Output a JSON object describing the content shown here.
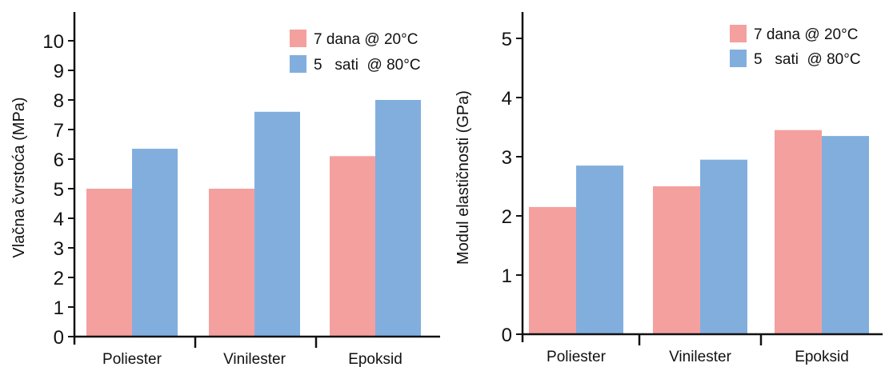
{
  "chart_data": [
    {
      "type": "bar",
      "categories": [
        "Poliester",
        "Vinilester",
        "Epoksid"
      ],
      "ylabel": "Vlačna čvrstoća (MPa)",
      "xlabel": "",
      "ylim": [
        0,
        10
      ],
      "yticks": [
        "0",
        "1",
        "2",
        "3",
        "4",
        "5",
        "6",
        "7",
        "8",
        "9",
        "10"
      ],
      "grid": false,
      "legend_position": "top-right",
      "series": [
        {
          "name": "7 dana @ 20°C",
          "color": "#f4a09e",
          "values": [
            5.0,
            5.0,
            6.1
          ]
        },
        {
          "name": "5   sati  @ 80°C",
          "color": "#82aede",
          "values": [
            6.35,
            7.6,
            8.0
          ]
        }
      ]
    },
    {
      "type": "bar",
      "categories": [
        "Poliester",
        "Vinilester",
        "Epoksid"
      ],
      "ylabel": "Modul elastičnosti (GPa)",
      "xlabel": "",
      "ylim": [
        0,
        5
      ],
      "yticks": [
        "0",
        "1",
        "2",
        "3",
        "4",
        "5"
      ],
      "grid": false,
      "legend_position": "top-right",
      "series": [
        {
          "name": "7 dana @ 20°C",
          "color": "#f4a09e",
          "values": [
            2.15,
            2.5,
            3.45
          ]
        },
        {
          "name": "5   sati  @ 80°C",
          "color": "#82aede",
          "values": [
            2.85,
            2.95,
            3.35
          ]
        }
      ]
    }
  ]
}
